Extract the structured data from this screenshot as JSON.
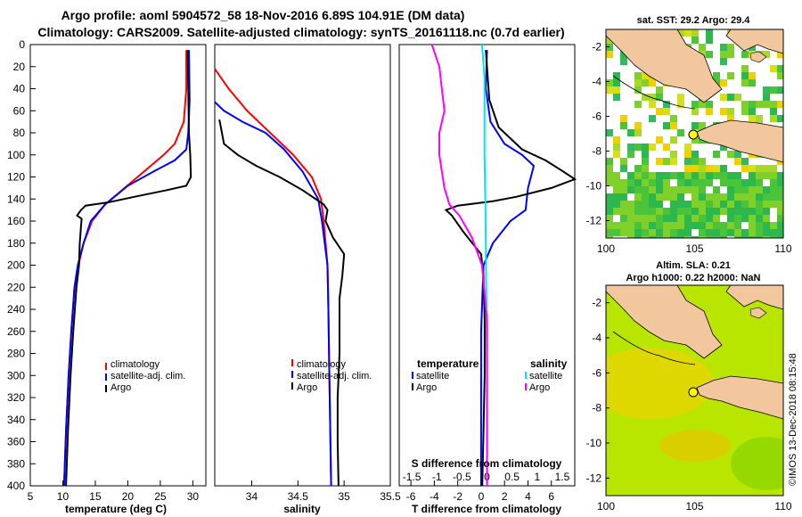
{
  "header": {
    "line1": "Argo profile: aoml 5904572_58 18-Nov-2016 6.89S 104.91E (DM data)",
    "line2": "Climatology: CARS2009. Satellite-adjusted climatology: synTS_20161118.nc (0.7d earlier)"
  },
  "colors": {
    "climatology": "#ff0000",
    "satellite": "#0000ff",
    "argo": "#000000",
    "sat_salinity": "#00e5ee",
    "argo_salinity": "#ff00ff"
  },
  "chart_data": [
    {
      "type": "line",
      "id": "temperature",
      "xlabel": "temperature (deg C)",
      "xlim": [
        5,
        32
      ],
      "xticks": [
        5,
        10,
        15,
        20,
        25,
        30
      ],
      "ylim": [
        400,
        0
      ],
      "yticks": [
        0,
        20,
        40,
        60,
        80,
        100,
        120,
        140,
        160,
        180,
        200,
        220,
        240,
        260,
        280,
        300,
        320,
        340,
        360,
        380,
        400
      ],
      "legend": [
        "climatology",
        "satellite-adj. clim.",
        "Argo"
      ],
      "series": [
        {
          "name": "climatology",
          "color": "#ff0000",
          "points": [
            [
              29.0,
              5
            ],
            [
              29.0,
              40
            ],
            [
              28.6,
              70
            ],
            [
              27.2,
              90
            ],
            [
              25.5,
              100
            ],
            [
              22.5,
              115
            ],
            [
              19.5,
              130
            ],
            [
              16.5,
              145
            ],
            [
              14.5,
              160
            ],
            [
              13.2,
              180
            ],
            [
              12.4,
              200
            ],
            [
              11.8,
              220
            ],
            [
              11.3,
              260
            ],
            [
              10.9,
              300
            ],
            [
              10.5,
              350
            ],
            [
              10.2,
              400
            ]
          ]
        },
        {
          "name": "satellite-adj. clim.",
          "color": "#0000ff",
          "points": [
            [
              29.4,
              5
            ],
            [
              29.5,
              50
            ],
            [
              29.3,
              80
            ],
            [
              29.0,
              95
            ],
            [
              27.2,
              105
            ],
            [
              24.0,
              115
            ],
            [
              20.0,
              128
            ],
            [
              16.5,
              145
            ],
            [
              14.3,
              160
            ],
            [
              13.2,
              180
            ],
            [
              12.3,
              200
            ],
            [
              11.8,
              220
            ],
            [
              11.3,
              260
            ],
            [
              10.9,
              300
            ],
            [
              10.5,
              350
            ],
            [
              10.2,
              400
            ]
          ]
        },
        {
          "name": "Argo",
          "color": "#000000",
          "points": [
            [
              29.2,
              5
            ],
            [
              29.3,
              40
            ],
            [
              29.4,
              80
            ],
            [
              29.6,
              100
            ],
            [
              29.7,
              120
            ],
            [
              29.0,
              128
            ],
            [
              26.0,
              132
            ],
            [
              21.0,
              138
            ],
            [
              17.0,
              143
            ],
            [
              13.5,
              146
            ],
            [
              12.8,
              150
            ],
            [
              12.2,
              155
            ],
            [
              12.9,
              158
            ],
            [
              12.8,
              165
            ],
            [
              12.6,
              180
            ],
            [
              12.5,
              200
            ],
            [
              12.1,
              220
            ],
            [
              11.6,
              260
            ],
            [
              11.2,
              300
            ],
            [
              10.8,
              350
            ],
            [
              10.5,
              400
            ]
          ]
        }
      ]
    },
    {
      "type": "line",
      "id": "salinity",
      "xlabel": "salinity",
      "xlim": [
        33.6,
        35.5
      ],
      "xticks": [
        34,
        34.5,
        35,
        35.5
      ],
      "xtick_labels": [
        "34",
        "34.5",
        "35",
        "35.5"
      ],
      "ylim": [
        400,
        0
      ],
      "legend": [
        "climatology",
        "satellite-adj. clim.",
        "Argo"
      ],
      "series": [
        {
          "name": "climatology",
          "color": "#ff0000",
          "points": [
            [
              33.6,
              22
            ],
            [
              33.75,
              40
            ],
            [
              33.95,
              60
            ],
            [
              34.2,
              80
            ],
            [
              34.45,
              100
            ],
            [
              34.65,
              120
            ],
            [
              34.75,
              140
            ],
            [
              34.78,
              160
            ],
            [
              34.8,
              180
            ],
            [
              34.82,
              200
            ],
            [
              34.83,
              240
            ],
            [
              34.84,
              300
            ],
            [
              34.85,
              350
            ],
            [
              34.86,
              400
            ]
          ]
        },
        {
          "name": "satellite-adj. clim.",
          "color": "#0000ff",
          "points": [
            [
              33.6,
              52
            ],
            [
              33.7,
              60
            ],
            [
              33.9,
              70
            ],
            [
              34.15,
              80
            ],
            [
              34.35,
              95
            ],
            [
              34.55,
              115
            ],
            [
              34.72,
              140
            ],
            [
              34.76,
              160
            ],
            [
              34.79,
              180
            ],
            [
              34.82,
              200
            ],
            [
              34.83,
              240
            ],
            [
              34.84,
              300
            ],
            [
              34.85,
              350
            ],
            [
              34.86,
              400
            ]
          ]
        },
        {
          "name": "Argo",
          "color": "#000000",
          "points": [
            [
              33.65,
              68
            ],
            [
              33.7,
              90
            ],
            [
              33.85,
              100
            ],
            [
              34.05,
              110
            ],
            [
              34.3,
              120
            ],
            [
              34.55,
              132
            ],
            [
              34.78,
              145
            ],
            [
              34.82,
              150
            ],
            [
              34.8,
              160
            ],
            [
              34.88,
              175
            ],
            [
              35.0,
              190
            ],
            [
              34.98,
              210
            ],
            [
              34.95,
              230
            ],
            [
              34.95,
              280
            ],
            [
              34.93,
              320
            ],
            [
              34.93,
              360
            ],
            [
              34.94,
              400
            ]
          ]
        }
      ]
    },
    {
      "type": "line",
      "id": "difference",
      "xlabel": "T difference from climatology",
      "xlabel_top": "S difference from climatology",
      "xlim": [
        -7,
        8
      ],
      "xticks": [
        -6,
        -4,
        -2,
        0,
        2,
        4,
        6
      ],
      "ylim": [
        400,
        0
      ],
      "sticks": [
        -1.5,
        -1,
        -0.5,
        0,
        0.5,
        1,
        1.5
      ],
      "stick_labels": [
        "-1.5",
        "-1",
        "-0.5",
        "0",
        "0.5",
        "1",
        "1.5"
      ],
      "legend_temperature_title": "temperature",
      "legend_salinity_title": "salinity",
      "legend_temperature": [
        "satellite",
        "Argo"
      ],
      "legend_salinity": [
        "satellite",
        "Argo"
      ],
      "series": [
        {
          "name": "T satellite",
          "color": "#0000ff",
          "points": [
            [
              0.5,
              5
            ],
            [
              0.4,
              40
            ],
            [
              0.8,
              70
            ],
            [
              2.0,
              90
            ],
            [
              3.5,
              100
            ],
            [
              4.5,
              110
            ],
            [
              4.0,
              130
            ],
            [
              3.8,
              150
            ],
            [
              2.5,
              160
            ],
            [
              1.0,
              180
            ],
            [
              0.2,
              200
            ],
            [
              0.0,
              260
            ],
            [
              0.0,
              400
            ]
          ]
        },
        {
          "name": "T Argo",
          "color": "#000000",
          "points": [
            [
              0.4,
              5
            ],
            [
              0.7,
              50
            ],
            [
              1.5,
              75
            ],
            [
              3.5,
              95
            ],
            [
              5.5,
              105
            ],
            [
              7.0,
              115
            ],
            [
              8.0,
              122
            ],
            [
              6.0,
              130
            ],
            [
              3.0,
              138
            ],
            [
              1.0,
              142
            ],
            [
              -2.0,
              146
            ],
            [
              -3.0,
              150
            ],
            [
              -2.5,
              155
            ],
            [
              -1.5,
              170
            ],
            [
              0.0,
              190
            ],
            [
              0.2,
              210
            ],
            [
              0.3,
              250
            ],
            [
              0.3,
              300
            ],
            [
              0.2,
              350
            ],
            [
              0.1,
              400
            ]
          ]
        },
        {
          "name": "S satellite",
          "color": "#00e5ee",
          "points": [
            [
              -0.1,
              0
            ],
            [
              -0.05,
              30
            ],
            [
              -0.05,
              60
            ],
            [
              -0.05,
              100
            ],
            [
              -0.03,
              150
            ],
            [
              -0.02,
              200
            ],
            [
              0.0,
              300
            ],
            [
              0.0,
              400
            ]
          ]
        },
        {
          "name": "S Argo",
          "color": "#ff00ff",
          "points": [
            [
              -1.1,
              0
            ],
            [
              -0.95,
              20
            ],
            [
              -0.9,
              40
            ],
            [
              -0.85,
              60
            ],
            [
              -0.95,
              80
            ],
            [
              -0.95,
              100
            ],
            [
              -0.85,
              130
            ],
            [
              -0.75,
              145
            ],
            [
              -0.55,
              155
            ],
            [
              -0.3,
              175
            ],
            [
              -0.1,
              200
            ],
            [
              0.0,
              250
            ],
            [
              0.0,
              400
            ]
          ]
        }
      ]
    },
    {
      "type": "heatmap",
      "id": "sst_map",
      "title": "sat. SST: 29.2 Argo: 29.4",
      "xlim": [
        100,
        110
      ],
      "ylim": [
        -13,
        -1
      ],
      "xticks": [
        100,
        105,
        110
      ],
      "yticks": [
        -2,
        -4,
        -6,
        -8,
        -10,
        -12
      ],
      "argo_position": [
        104.91,
        -6.89
      ]
    },
    {
      "type": "heatmap",
      "id": "sla_map",
      "title": "Altim. SLA: 0.21",
      "subtitle": "Argo h1000: 0.22 h2000: NaN",
      "xlim": [
        100,
        110
      ],
      "ylim": [
        -13,
        -1
      ],
      "xticks": [
        100,
        105,
        110
      ],
      "yticks": [
        -2,
        -4,
        -6,
        -8,
        -10,
        -12
      ],
      "argo_position": [
        104.91,
        -6.89
      ]
    }
  ],
  "watermark": "©IMOS 13-Dec-2018 08:15:48"
}
